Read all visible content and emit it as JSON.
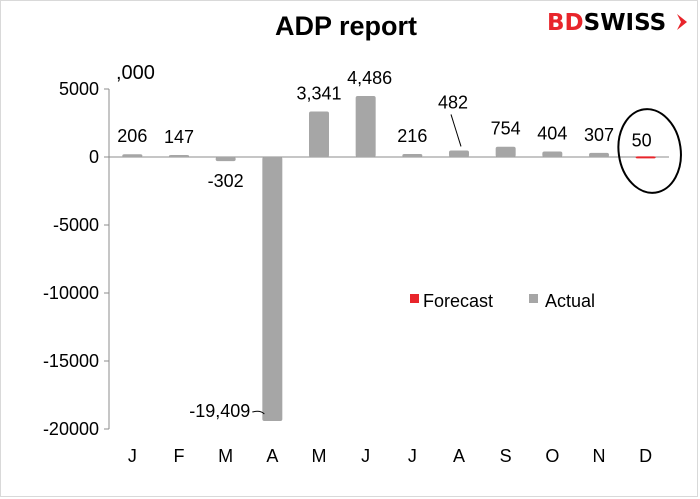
{
  "logo": {
    "part1": "BD",
    "part2": "SWISS"
  },
  "colors": {
    "actual": "#a6a6a6",
    "forecast": "#e8252b",
    "axis": "#8c8c8c",
    "brand": "#e8252b"
  },
  "chart_data": {
    "type": "bar",
    "title": "ADP report",
    "unit_label": ",000",
    "categories": [
      "J",
      "F",
      "M",
      "A",
      "M",
      "J",
      "J",
      "A",
      "S",
      "O",
      "N",
      "D"
    ],
    "series": [
      {
        "name": "Forecast",
        "values": [
          null,
          null,
          null,
          null,
          null,
          null,
          null,
          null,
          null,
          null,
          null,
          50
        ]
      },
      {
        "name": "Actual",
        "values": [
          206,
          147,
          -302,
          -19409,
          3341,
          4486,
          216,
          482,
          754,
          404,
          307,
          null
        ]
      }
    ],
    "data_labels": [
      "206",
      "147",
      "-302",
      "-19,409",
      "3,341",
      "4,486",
      "216",
      "482",
      "754",
      "404",
      "307",
      "50"
    ],
    "yticks": [
      "5000",
      "0",
      "-5000",
      "-10000",
      "-15000",
      "-20000"
    ],
    "ylim": [
      -20000,
      5000
    ],
    "legend_position": "center-right",
    "grid": false,
    "annotation": "circle around December forecast"
  }
}
